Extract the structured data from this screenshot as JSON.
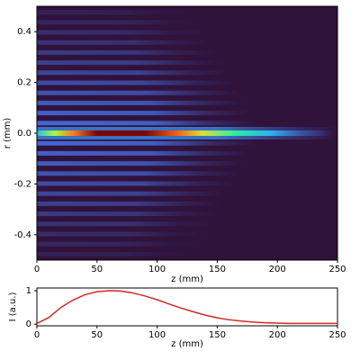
{
  "chart_data": [
    {
      "type": "heatmap",
      "xlabel": "z (mm)",
      "ylabel": "r (mm)",
      "xlim": [
        0,
        250
      ],
      "xticks": [
        0,
        50,
        100,
        150,
        200,
        250
      ],
      "ylim": [
        -0.5,
        0.5
      ],
      "yticks": [
        0.4,
        0.2,
        {
          "value": 0,
          "label": "0.0"
        },
        -0.2,
        -0.4
      ]
    },
    {
      "type": "line",
      "xlabel": "z (mm)",
      "ylabel": "I (a.u.)",
      "color": "#d62728",
      "x": [
        0,
        10,
        20,
        30,
        40,
        50,
        60,
        70,
        80,
        90,
        100,
        110,
        120,
        130,
        140,
        150,
        160,
        170,
        180,
        190,
        200,
        210,
        220,
        230,
        240,
        250
      ],
      "values": [
        0.02,
        0.2,
        0.5,
        0.72,
        0.88,
        0.97,
        1.0,
        0.99,
        0.93,
        0.84,
        0.73,
        0.6,
        0.48,
        0.37,
        0.27,
        0.19,
        0.13,
        0.09,
        0.06,
        0.04,
        0.03,
        0.02,
        0.02,
        0.02,
        0.02,
        0.02
      ],
      "xlim": [
        0,
        250
      ],
      "xticks": [
        0,
        50,
        100,
        150,
        200,
        250
      ],
      "ylim": [
        -0.05,
        1.08
      ],
      "yticks": [
        0,
        1
      ]
    }
  ]
}
